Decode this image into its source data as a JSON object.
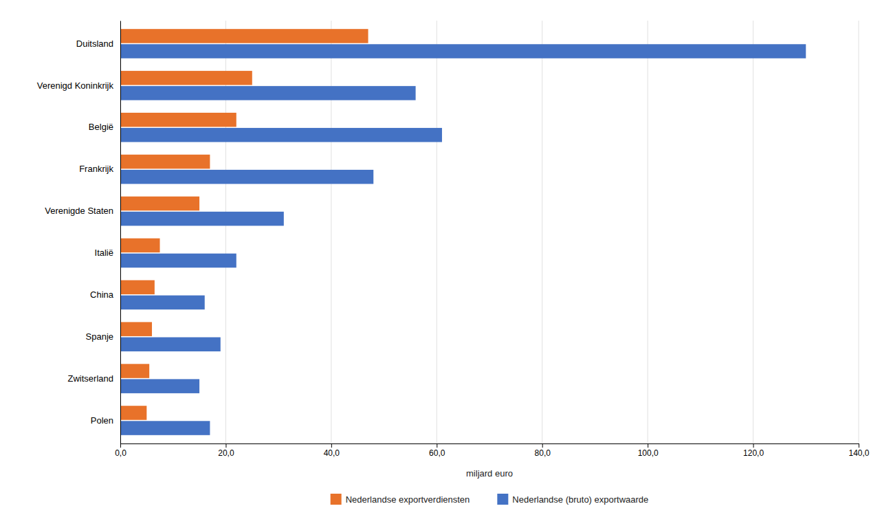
{
  "chart_data": {
    "type": "bar",
    "orientation": "horizontal",
    "categories": [
      "Duitsland",
      "Verenigd Koninkrijk",
      "België",
      "Frankrijk",
      "Verenigde Staten",
      "Italië",
      "China",
      "Spanje",
      "Zwitserland",
      "Polen"
    ],
    "series": [
      {
        "name": "Nederlandse exportverdiensten",
        "color": "#E8722A",
        "values": [
          47.0,
          25.0,
          22.0,
          17.0,
          15.0,
          7.5,
          6.5,
          6.0,
          5.5,
          5.0
        ]
      },
      {
        "name": "Nederlandse (bruto) exportwaarde",
        "color": "#4472C4",
        "values": [
          130.0,
          56.0,
          61.0,
          48.0,
          31.0,
          22.0,
          16.0,
          19.0,
          15.0,
          17.0
        ]
      }
    ],
    "xlabel": "miljard euro",
    "xlim": [
      0,
      140
    ],
    "xticks": [
      {
        "value": 0,
        "label": "0,0"
      },
      {
        "value": 20,
        "label": "20,0"
      },
      {
        "value": 40,
        "label": "40,0"
      },
      {
        "value": 60,
        "label": "60,0"
      },
      {
        "value": 80,
        "label": "80,0"
      },
      {
        "value": 100,
        "label": "100,0"
      },
      {
        "value": 120,
        "label": "120,0"
      },
      {
        "value": 140,
        "label": "140,0"
      }
    ],
    "grid": true,
    "legend": "bottom"
  }
}
